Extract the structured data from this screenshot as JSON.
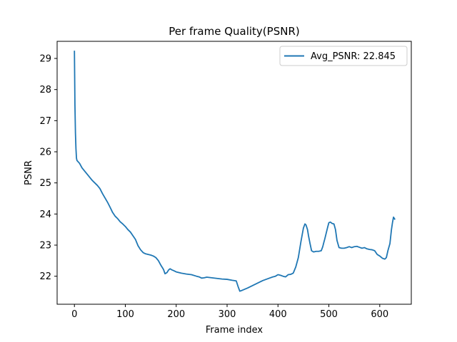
{
  "chart_data": {
    "type": "line",
    "title": "Per frame Quality(PSNR)",
    "xlabel": "Frame index",
    "ylabel": "PSNR",
    "xlim": [
      -34,
      662
    ],
    "ylim": [
      21.1,
      29.55
    ],
    "xticks": [
      0,
      100,
      200,
      300,
      400,
      500,
      600
    ],
    "yticks": [
      22,
      23,
      24,
      25,
      26,
      27,
      28,
      29
    ],
    "grid": false,
    "legend_position": "top-right",
    "color": "#1f77b4",
    "series": [
      {
        "name": "Avg_PSNR: 22.845",
        "x": [
          0,
          1,
          2,
          3,
          4,
          5,
          10,
          15,
          20,
          25,
          30,
          35,
          40,
          45,
          50,
          55,
          60,
          65,
          70,
          75,
          80,
          85,
          90,
          95,
          100,
          105,
          110,
          115,
          120,
          125,
          130,
          135,
          140,
          145,
          150,
          155,
          160,
          165,
          170,
          175,
          178,
          182,
          185,
          188,
          192,
          195,
          200,
          210,
          220,
          230,
          240,
          245,
          250,
          255,
          260,
          270,
          280,
          290,
          300,
          310,
          318,
          322,
          325,
          330,
          340,
          350,
          360,
          370,
          380,
          390,
          395,
          400,
          405,
          410,
          415,
          420,
          425,
          430,
          435,
          440,
          445,
          450,
          453,
          455,
          458,
          460,
          463,
          466,
          470,
          475,
          480,
          485,
          488,
          490,
          492,
          495,
          498,
          500,
          503,
          506,
          510,
          513,
          516,
          520,
          525,
          530,
          535,
          540,
          545,
          550,
          555,
          560,
          565,
          570,
          575,
          580,
          585,
          590,
          595,
          600,
          605,
          610,
          613,
          616,
          620,
          623,
          625,
          627,
          630
        ],
        "y": [
          29.25,
          27.5,
          26.6,
          26.1,
          25.8,
          25.72,
          25.63,
          25.48,
          25.38,
          25.28,
          25.18,
          25.08,
          25.0,
          24.92,
          24.82,
          24.66,
          24.52,
          24.38,
          24.22,
          24.05,
          23.93,
          23.85,
          23.75,
          23.68,
          23.6,
          23.5,
          23.42,
          23.3,
          23.18,
          22.98,
          22.85,
          22.76,
          22.72,
          22.7,
          22.68,
          22.65,
          22.6,
          22.5,
          22.35,
          22.22,
          22.08,
          22.12,
          22.2,
          22.24,
          22.2,
          22.18,
          22.14,
          22.1,
          22.07,
          22.05,
          22.0,
          21.98,
          21.94,
          21.95,
          21.97,
          21.95,
          21.93,
          21.91,
          21.9,
          21.87,
          21.85,
          21.65,
          21.52,
          21.55,
          21.62,
          21.7,
          21.78,
          21.86,
          21.92,
          21.98,
          22.0,
          22.05,
          22.03,
          22.0,
          21.98,
          22.05,
          22.06,
          22.1,
          22.3,
          22.6,
          23.1,
          23.55,
          23.68,
          23.65,
          23.5,
          23.3,
          23.05,
          22.82,
          22.78,
          22.8,
          22.8,
          22.82,
          22.95,
          23.08,
          23.2,
          23.4,
          23.6,
          23.72,
          23.74,
          23.7,
          23.68,
          23.5,
          23.15,
          22.92,
          22.9,
          22.9,
          22.92,
          22.95,
          22.92,
          22.95,
          22.96,
          22.93,
          22.9,
          22.92,
          22.88,
          22.86,
          22.85,
          22.82,
          22.7,
          22.65,
          22.58,
          22.55,
          22.6,
          22.82,
          23.05,
          23.5,
          23.72,
          23.9,
          23.82
        ]
      }
    ]
  }
}
